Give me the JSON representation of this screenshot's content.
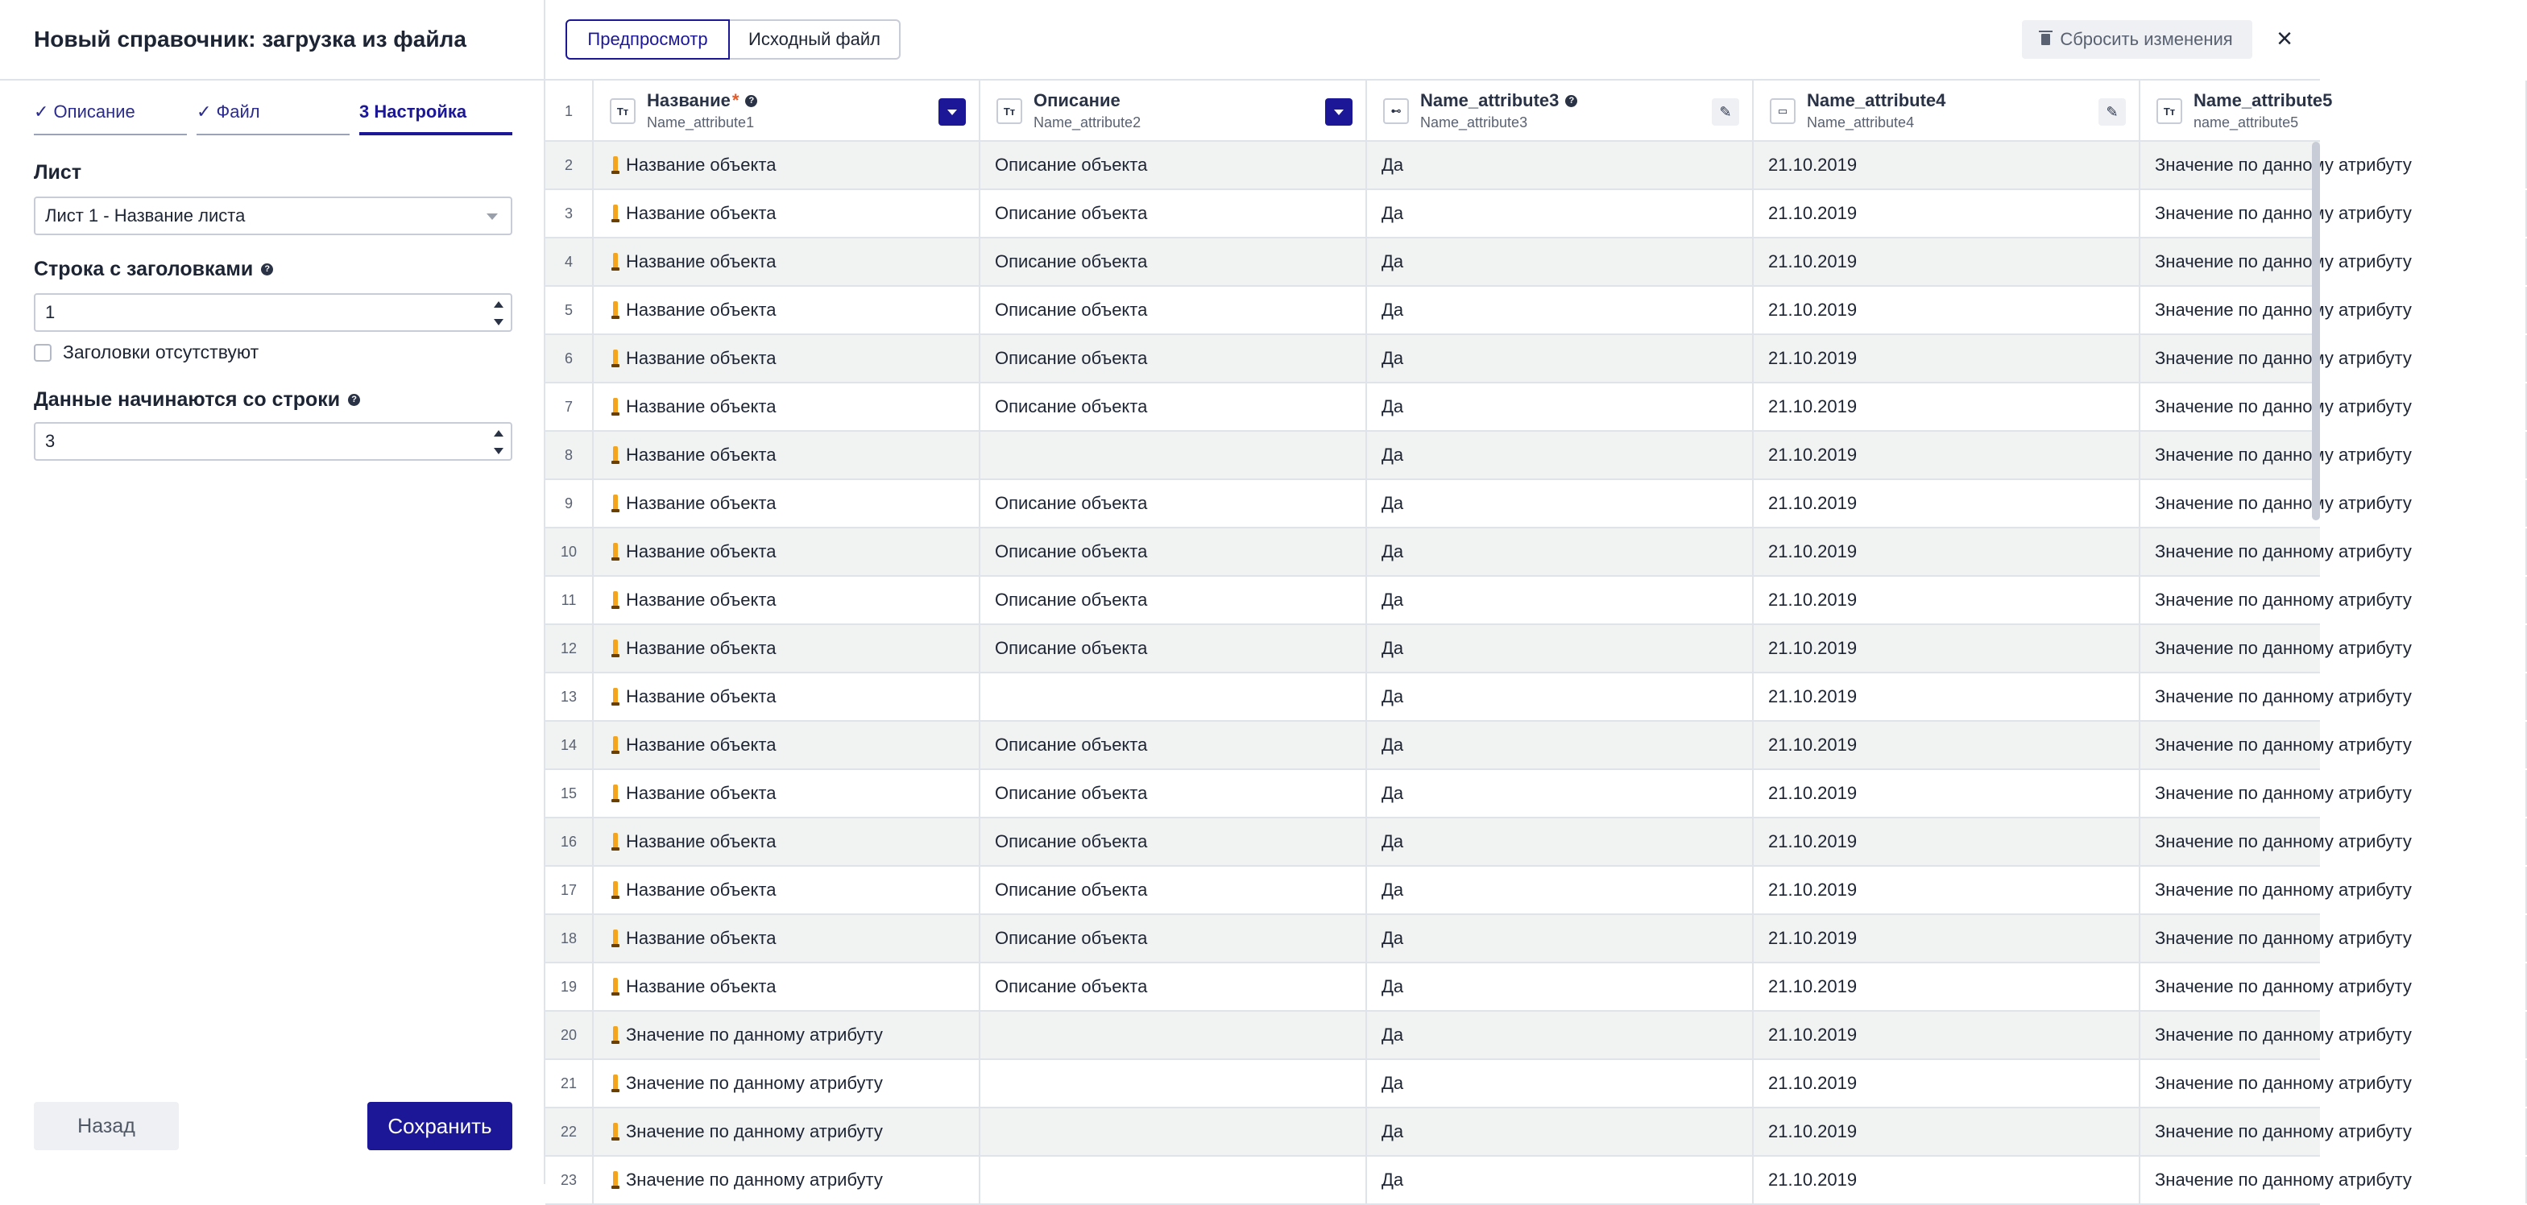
{
  "left_panel": {
    "title": "Новый справочник: загрузка из файла",
    "steps": [
      "✓ Описание",
      "✓ Файл",
      "3 Настройка"
    ],
    "sheet": {
      "label": "Лист",
      "value": "Лист 1 - Название листа"
    },
    "header_row": {
      "label": "Строка с заголовками",
      "value": "1"
    },
    "no_headers": {
      "label": "Заголовки отсутствуют",
      "checked": false
    },
    "data_start": {
      "label": "Данные начинаются со строки",
      "value": "3"
    },
    "back_label": "Назад",
    "save_label": "Сохранить"
  },
  "right_panel": {
    "tabs": [
      "Предпросмотр",
      "Исходный файл"
    ],
    "active_tab": 0,
    "reset_label": "Сбросить изменения",
    "close_icon": "×",
    "columns": [
      {
        "type_icon": "Tт",
        "title": "Название",
        "required": true,
        "help": true,
        "subtitle": "Name_attribute1",
        "action": "dropdown"
      },
      {
        "type_icon": "Tт",
        "title": "Описание",
        "required": false,
        "help": false,
        "subtitle": "Name_attribute2",
        "action": "dropdown"
      },
      {
        "type_icon": "⊷",
        "title": "Name_attribute3",
        "required": false,
        "help": true,
        "subtitle": "Name_attribute3",
        "action": "edit"
      },
      {
        "type_icon": "▭",
        "title": "Name_attribute4",
        "required": false,
        "help": false,
        "subtitle": "Name_attribute4",
        "action": "edit"
      },
      {
        "type_icon": "Tт",
        "title": "Name_attribute5",
        "required": false,
        "help": false,
        "subtitle": "name_attribute5",
        "action": "none"
      }
    ],
    "header_row_number": "1",
    "rows": [
      {
        "n": "2",
        "name": "Название объекта",
        "desc": "Описание объекта",
        "attr3": "Да",
        "attr4": "21.10.2019",
        "attr5": "Значение по данному атрибуту"
      },
      {
        "n": "3",
        "name": "Название объекта",
        "desc": "Описание объекта",
        "attr3": "Да",
        "attr4": "21.10.2019",
        "attr5": "Значение по данному атрибуту"
      },
      {
        "n": "4",
        "name": "Название объекта",
        "desc": "Описание объекта",
        "attr3": "Да",
        "attr4": "21.10.2019",
        "attr5": "Значение по данному атрибуту"
      },
      {
        "n": "5",
        "name": "Название объекта",
        "desc": "Описание объекта",
        "attr3": "Да",
        "attr4": "21.10.2019",
        "attr5": "Значение по данному атрибуту"
      },
      {
        "n": "6",
        "name": "Название объекта",
        "desc": "Описание объекта",
        "attr3": "Да",
        "attr4": "21.10.2019",
        "attr5": "Значение по данному атрибуту"
      },
      {
        "n": "7",
        "name": "Название объекта",
        "desc": "Описание объекта",
        "attr3": "Да",
        "attr4": "21.10.2019",
        "attr5": "Значение по данному атрибуту"
      },
      {
        "n": "8",
        "name": "Название объекта",
        "desc": "",
        "attr3": "Да",
        "attr4": "21.10.2019",
        "attr5": "Значение по данному атрибуту"
      },
      {
        "n": "9",
        "name": "Название объекта",
        "desc": "Описание объекта",
        "attr3": "Да",
        "attr4": "21.10.2019",
        "attr5": "Значение по данному атрибуту"
      },
      {
        "n": "10",
        "name": "Название объекта",
        "desc": "Описание объекта",
        "attr3": "Да",
        "attr4": "21.10.2019",
        "attr5": "Значение по данному атрибуту"
      },
      {
        "n": "11",
        "name": "Название объекта",
        "desc": "Описание объекта",
        "attr3": "Да",
        "attr4": "21.10.2019",
        "attr5": "Значение по данному атрибуту"
      },
      {
        "n": "12",
        "name": "Название объекта",
        "desc": "Описание объекта",
        "attr3": "Да",
        "attr4": "21.10.2019",
        "attr5": "Значение по данному атрибуту"
      },
      {
        "n": "13",
        "name": "Название объекта",
        "desc": "",
        "attr3": "Да",
        "attr4": "21.10.2019",
        "attr5": "Значение по данному атрибуту"
      },
      {
        "n": "14",
        "name": "Название объекта",
        "desc": "Описание объекта",
        "attr3": "Да",
        "attr4": "21.10.2019",
        "attr5": "Значение по данному атрибуту"
      },
      {
        "n": "15",
        "name": "Название объекта",
        "desc": "Описание объекта",
        "attr3": "Да",
        "attr4": "21.10.2019",
        "attr5": "Значение по данному атрибуту"
      },
      {
        "n": "16",
        "name": "Название объекта",
        "desc": "Описание объекта",
        "attr3": "Да",
        "attr4": "21.10.2019",
        "attr5": "Значение по данному атрибуту"
      },
      {
        "n": "17",
        "name": "Название объекта",
        "desc": "Описание объекта",
        "attr3": "Да",
        "attr4": "21.10.2019",
        "attr5": "Значение по данному атрибуту"
      },
      {
        "n": "18",
        "name": "Название объекта",
        "desc": "Описание объекта",
        "attr3": "Да",
        "attr4": "21.10.2019",
        "attr5": "Значение по данному атрибуту"
      },
      {
        "n": "19",
        "name": "Название объекта",
        "desc": "Описание объекта",
        "attr3": "Да",
        "attr4": "21.10.2019",
        "attr5": "Значение по данному атрибуту"
      },
      {
        "n": "20",
        "name": "Значение по данному атрибуту",
        "desc": "",
        "attr3": "Да",
        "attr4": "21.10.2019",
        "attr5": "Значение по данному атрибуту"
      },
      {
        "n": "21",
        "name": "Значение по данному атрибуту",
        "desc": "",
        "attr3": "Да",
        "attr4": "21.10.2019",
        "attr5": "Значение по данному атрибуту"
      },
      {
        "n": "22",
        "name": "Значение по данному атрибуту",
        "desc": "",
        "attr3": "Да",
        "attr4": "21.10.2019",
        "attr5": "Значение по данному атрибуту"
      },
      {
        "n": "23",
        "name": "Значение по данному атрибуту",
        "desc": "",
        "attr3": "Да",
        "attr4": "21.10.2019",
        "attr5": "Значение по данному атрибуту"
      }
    ]
  },
  "colors": {
    "accent": "#1b1796",
    "warning": "#f4a41d",
    "stripe": "#f1f2f2",
    "border": "#dfe3ea"
  },
  "icons": {
    "help": "help-circle-icon",
    "warning": "warning-pin-icon",
    "edit": "pencil-icon",
    "dropdown": "caret-down-icon",
    "trash": "trash-icon",
    "close": "close-icon"
  }
}
